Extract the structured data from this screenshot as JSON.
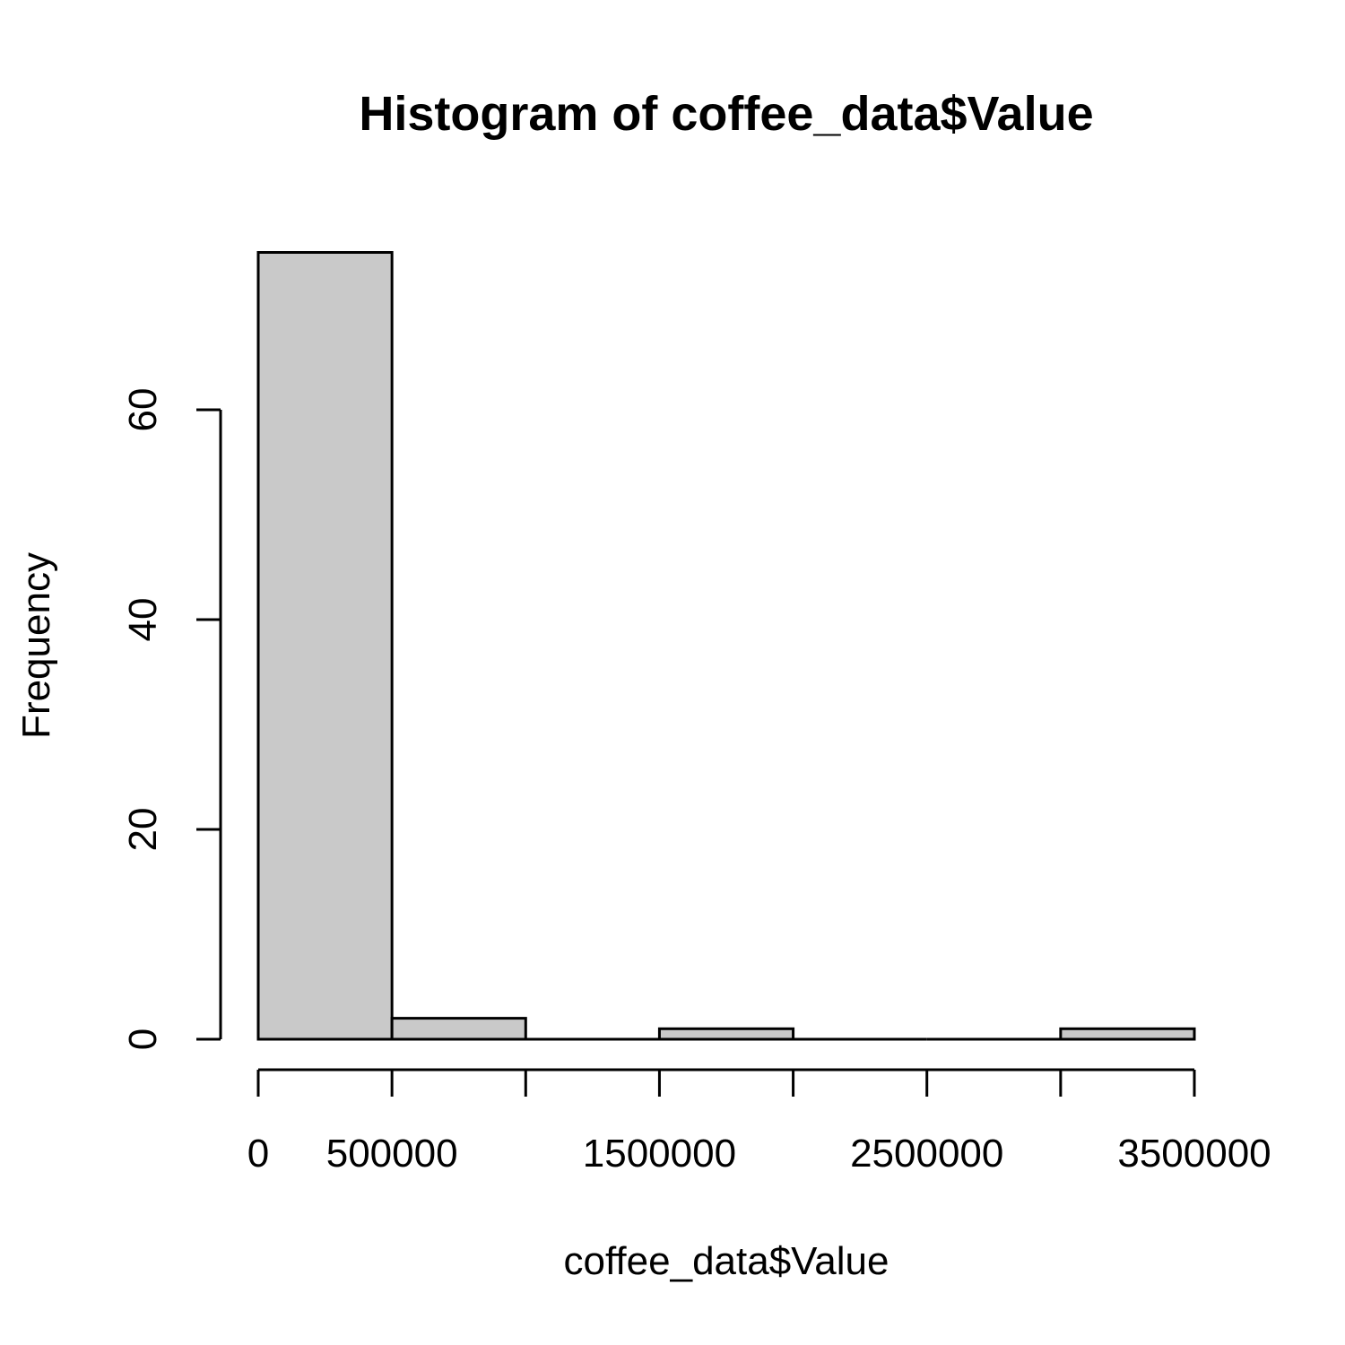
{
  "chart_data": {
    "type": "bar",
    "title": "Histogram of coffee_data$Value",
    "xlabel": "coffee_data$Value",
    "ylabel": "Frequency",
    "bins": [
      {
        "start": 0,
        "end": 500000,
        "count": 75
      },
      {
        "start": 500000,
        "end": 1000000,
        "count": 2
      },
      {
        "start": 1000000,
        "end": 1500000,
        "count": 0
      },
      {
        "start": 1500000,
        "end": 2000000,
        "count": 1
      },
      {
        "start": 2000000,
        "end": 2500000,
        "count": 0
      },
      {
        "start": 2500000,
        "end": 3000000,
        "count": 0
      },
      {
        "start": 3000000,
        "end": 3500000,
        "count": 1
      }
    ],
    "xlim": [
      0,
      3500000
    ],
    "ylim": [
      0,
      75
    ],
    "x_ticks": [
      0,
      500000,
      1000000,
      1500000,
      2000000,
      2500000,
      3000000,
      3500000
    ],
    "x_tick_labels": [
      "0",
      "500000",
      "",
      "1500000",
      "",
      "2500000",
      "",
      "3500000"
    ],
    "y_ticks": [
      0,
      20,
      40,
      60
    ],
    "y_tick_labels": [
      "0",
      "20",
      "40",
      "60"
    ],
    "colors": {
      "bar_fill": "#c9c9c9",
      "bar_stroke": "#000000",
      "axis": "#000000",
      "background": "#ffffff"
    },
    "grid": false,
    "legend": "none"
  }
}
